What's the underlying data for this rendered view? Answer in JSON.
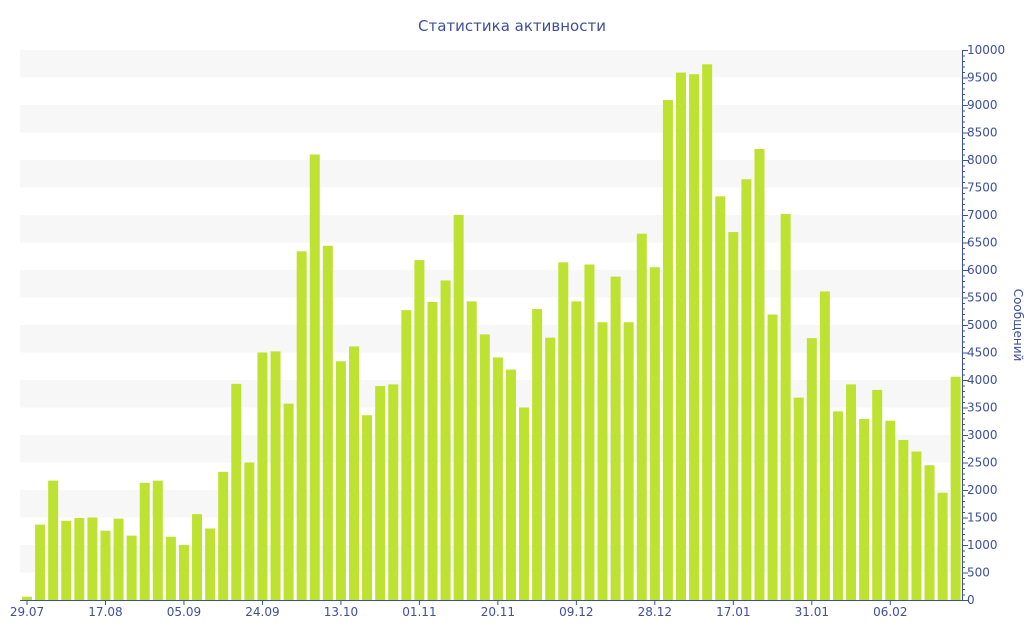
{
  "chart_data": {
    "type": "bar",
    "title": "Статистика активности",
    "xlabel": "",
    "ylabel": "Сообщений",
    "ylim": [
      0,
      10000
    ],
    "y_ticks": [
      0,
      500,
      1000,
      1500,
      2000,
      2500,
      3000,
      3500,
      4000,
      4500,
      5000,
      5500,
      6000,
      6500,
      7000,
      7500,
      8000,
      8500,
      9000,
      9500,
      10000
    ],
    "y_axis_side": "right",
    "grid": "alternating horizontal bands",
    "x_ticks": [
      {
        "label": "29.07",
        "index": 0
      },
      {
        "label": "17.08",
        "index": 6
      },
      {
        "label": "05.09",
        "index": 12
      },
      {
        "label": "24.09",
        "index": 18
      },
      {
        "label": "13.10",
        "index": 24
      },
      {
        "label": "01.11",
        "index": 30
      },
      {
        "label": "20.11",
        "index": 36
      },
      {
        "label": "09.12",
        "index": 42
      },
      {
        "label": "28.12",
        "index": 48
      },
      {
        "label": "17.01",
        "index": 54
      },
      {
        "label": "31.01",
        "index": 60
      },
      {
        "label": "06.02",
        "index": 66
      }
    ],
    "values": [
      60,
      1370,
      2170,
      1440,
      1490,
      1500,
      1260,
      1480,
      1170,
      2130,
      2170,
      1150,
      1000,
      1560,
      1300,
      2330,
      3930,
      2500,
      4500,
      4520,
      3570,
      6340,
      8100,
      6440,
      4340,
      4610,
      3360,
      3890,
      3920,
      5270,
      6180,
      5420,
      5810,
      7000,
      5430,
      4830,
      4410,
      4190,
      3500,
      5290,
      4770,
      6140,
      5430,
      6100,
      5050,
      5880,
      5050,
      6660,
      6050,
      9090,
      9590,
      9560,
      9740,
      7340,
      6690,
      7650,
      8200,
      5190,
      7020,
      3680,
      4760,
      5610,
      3430,
      3920,
      3290,
      3820,
      3260,
      2910,
      2700,
      2450,
      1950,
      4060
    ],
    "colors": {
      "bar": "#bde232",
      "axis": "#3e4f9c",
      "band": "#f7f7f7"
    }
  }
}
